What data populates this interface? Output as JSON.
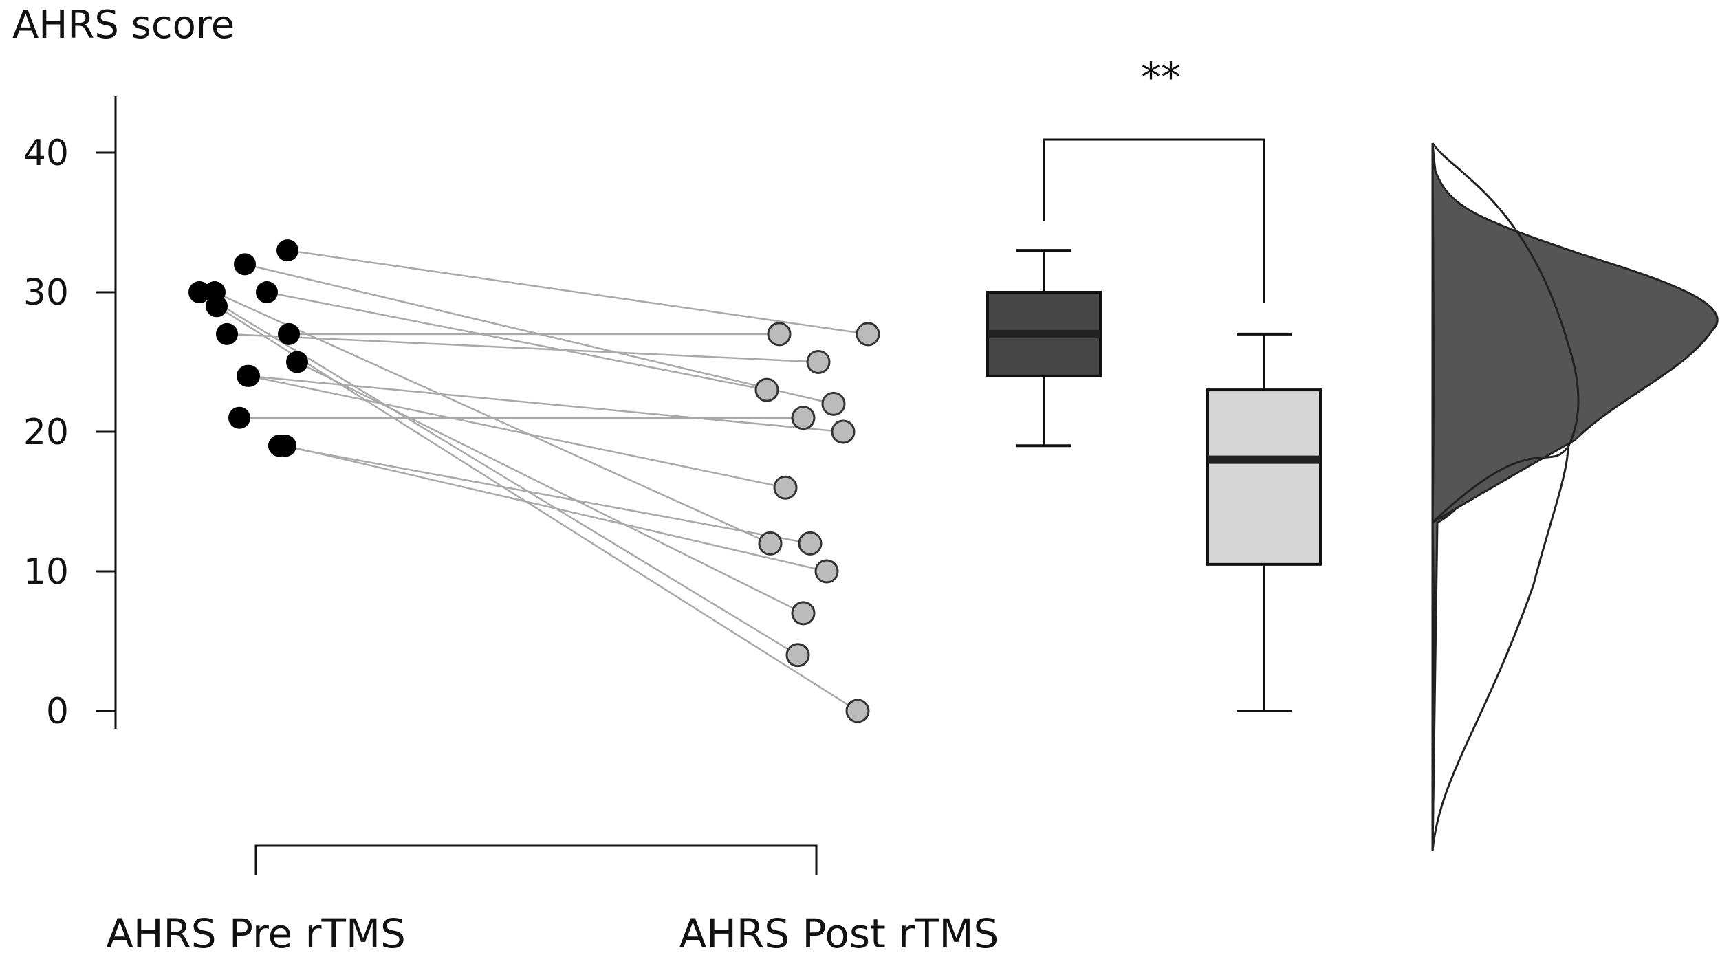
{
  "chart_data": {
    "type": "raincloud",
    "ylabel": "AHRS score",
    "ylim": [
      0,
      40
    ],
    "yticks": [
      0,
      10,
      20,
      30,
      40
    ],
    "groups": [
      {
        "name": "AHRS Pre rTMS",
        "point_color": "#000000",
        "box_color": "#474747",
        "density_color": "#5f5f5f"
      },
      {
        "name": "AHRS Post rTMS",
        "point_color": "#bbbbbb",
        "box_color": "#d6d6d6",
        "density_color": "#d9d9d9"
      }
    ],
    "pairs": [
      {
        "pre": 33,
        "post": 27
      },
      {
        "pre": 32,
        "post": 22
      },
      {
        "pre": 30,
        "post": 23
      },
      {
        "pre": 30,
        "post": 12
      },
      {
        "pre": 30,
        "post": 4
      },
      {
        "pre": 29,
        "post": 0
      },
      {
        "pre": 27,
        "post": 27
      },
      {
        "pre": 27,
        "post": 25
      },
      {
        "pre": 25,
        "post": 7
      },
      {
        "pre": 24,
        "post": 20
      },
      {
        "pre": 24,
        "post": 16
      },
      {
        "pre": 21,
        "post": 21
      },
      {
        "pre": 19,
        "post": 12
      },
      {
        "pre": 19,
        "post": 10
      }
    ],
    "boxplots": [
      {
        "group": "AHRS Pre rTMS",
        "min": 19,
        "q1": 24,
        "median": 27,
        "q3": 30,
        "max": 33
      },
      {
        "group": "AHRS Post rTMS",
        "min": 0,
        "q1": 10.5,
        "median": 18,
        "q3": 23,
        "max": 27
      }
    ],
    "significance": {
      "label": "**",
      "between": [
        "AHRS Pre rTMS",
        "AHRS Post rTMS"
      ]
    }
  }
}
